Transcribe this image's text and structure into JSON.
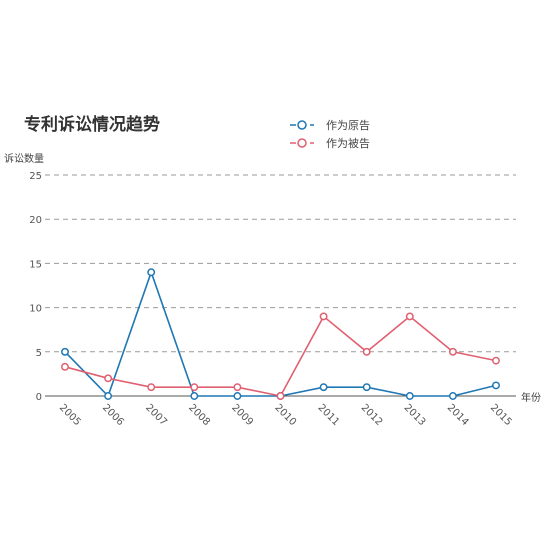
{
  "chart_data": {
    "type": "line",
    "title": "专利诉讼情况趋势",
    "ylabel": "诉讼数量",
    "xlabel": "年份",
    "ylim": [
      0,
      25
    ],
    "yticks": [
      0,
      5,
      10,
      15,
      20,
      25
    ],
    "grid": true,
    "legend_position": "top-right",
    "categories": [
      "2005",
      "2006",
      "2007",
      "2008",
      "2009",
      "2010",
      "2011",
      "2012",
      "2013",
      "2014",
      "2015"
    ],
    "series": [
      {
        "name": "作为原告",
        "color": "#1f77b4",
        "values": [
          5,
          0,
          14,
          0,
          0,
          0,
          1,
          1,
          0,
          0,
          1.2
        ]
      },
      {
        "name": "作为被告",
        "color": "#e06070",
        "values": [
          3.3,
          2,
          1,
          1,
          1,
          0,
          9,
          5,
          9,
          5,
          4
        ]
      }
    ]
  }
}
